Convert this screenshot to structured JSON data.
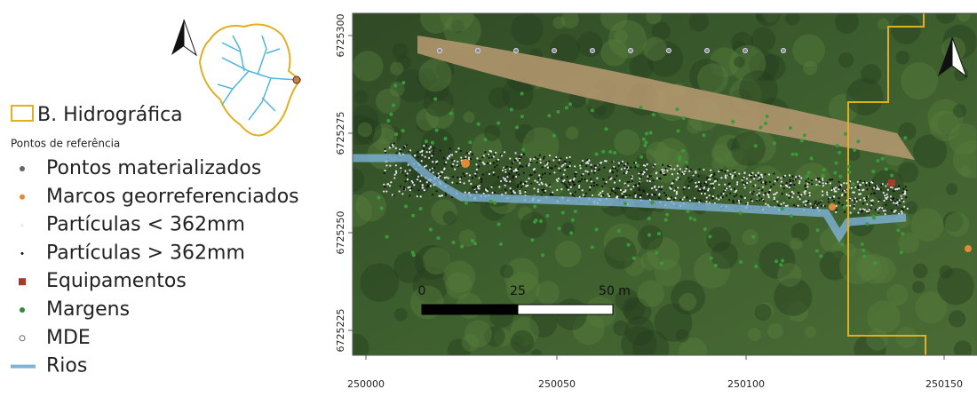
{
  "legend": {
    "boundary": "B. Hidrográfica",
    "group_title": "Pontos de referência",
    "items": [
      "Pontos materializados",
      "Marcos georreferenciados",
      "Partículas < 362mm",
      "Partículas > 362mm",
      "Equipamentos",
      "Margens",
      "MDE",
      "Rios"
    ]
  },
  "axes": {
    "x_ticks": [
      "250000",
      "250050",
      "250100",
      "250150"
    ],
    "y_ticks": [
      "6725300",
      "6725275",
      "6725250",
      "6725225"
    ]
  },
  "scale_bar": {
    "labels": [
      "0",
      "25",
      "50 m"
    ]
  }
}
